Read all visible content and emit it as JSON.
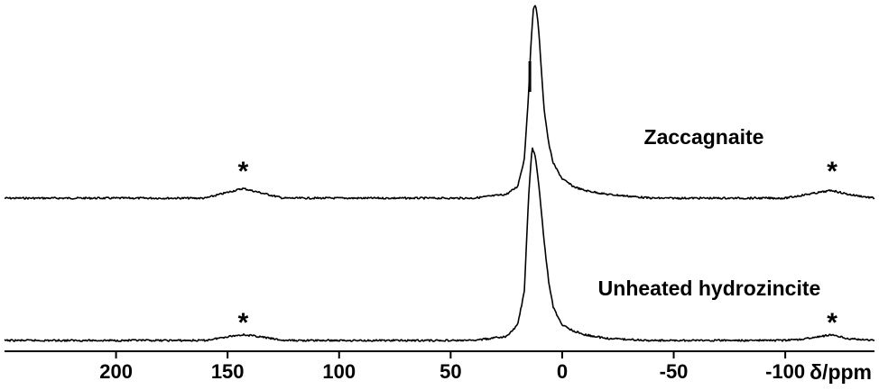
{
  "chart_data": {
    "type": "line",
    "xlabel": "δ/ppm",
    "x_reversed": true,
    "xlim": [
      250,
      -140
    ],
    "xticks": [
      200,
      150,
      100,
      50,
      0,
      -50,
      -100
    ],
    "xtick_labels": [
      "200",
      "150",
      "100",
      "50",
      "0",
      "-50",
      "-100"
    ],
    "yaxis_shown": false,
    "grid": false,
    "stacked": true,
    "series": [
      {
        "name": "Zaccagnaite",
        "main_peak_ppm": 12,
        "sharp_feature_ppm": 14.5,
        "sideband_marker": "*",
        "sideband_ppm": [
          143,
          -121
        ],
        "points": [
          [
            250,
            0.0
          ],
          [
            200,
            0.0
          ],
          [
            160,
            0.0
          ],
          [
            150,
            0.03
          ],
          [
            143,
            0.05
          ],
          [
            136,
            0.03
          ],
          [
            125,
            0.0
          ],
          [
            80,
            0.0
          ],
          [
            40,
            0.0
          ],
          [
            25,
            0.02
          ],
          [
            20,
            0.06
          ],
          [
            17,
            0.2
          ],
          [
            15,
            0.55
          ],
          [
            14,
            0.8
          ],
          [
            13,
            0.97
          ],
          [
            12,
            1.0
          ],
          [
            11,
            0.93
          ],
          [
            10,
            0.78
          ],
          [
            9,
            0.6
          ],
          [
            8,
            0.45
          ],
          [
            6,
            0.28
          ],
          [
            4,
            0.18
          ],
          [
            0,
            0.1
          ],
          [
            -5,
            0.06
          ],
          [
            -10,
            0.04
          ],
          [
            -20,
            0.02
          ],
          [
            -40,
            0.0
          ],
          [
            -100,
            0.0
          ],
          [
            -110,
            0.02
          ],
          [
            -121,
            0.04
          ],
          [
            -128,
            0.02
          ],
          [
            -140,
            0.0
          ]
        ]
      },
      {
        "name": "Unheated hydrozincite",
        "main_peak_ppm": 13,
        "sideband_marker": "*",
        "sideband_ppm": [
          143,
          -121
        ],
        "points": [
          [
            250,
            0.0
          ],
          [
            200,
            0.0
          ],
          [
            160,
            0.0
          ],
          [
            150,
            0.02
          ],
          [
            143,
            0.03
          ],
          [
            136,
            0.02
          ],
          [
            125,
            0.0
          ],
          [
            80,
            0.0
          ],
          [
            40,
            0.0
          ],
          [
            25,
            0.02
          ],
          [
            20,
            0.08
          ],
          [
            17,
            0.25
          ],
          [
            15,
            0.75
          ],
          [
            13.5,
            1.0
          ],
          [
            12,
            0.95
          ],
          [
            10,
            0.75
          ],
          [
            8,
            0.5
          ],
          [
            6,
            0.3
          ],
          [
            4,
            0.17
          ],
          [
            0,
            0.08
          ],
          [
            -5,
            0.05
          ],
          [
            -10,
            0.03
          ],
          [
            -20,
            0.01
          ],
          [
            -40,
            0.0
          ],
          [
            -100,
            0.0
          ],
          [
            -110,
            0.01
          ],
          [
            -121,
            0.03
          ],
          [
            -128,
            0.01
          ],
          [
            -140,
            0.0
          ]
        ]
      }
    ]
  }
}
